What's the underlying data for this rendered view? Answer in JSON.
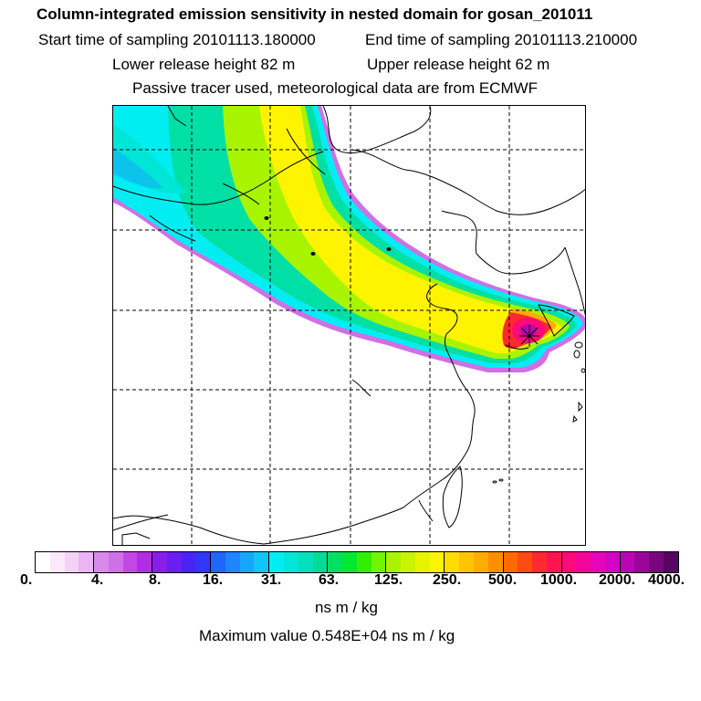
{
  "header": {
    "title": "Column-integrated emission sensitivity in nested domain for gosan_201011",
    "start_label": "Start time of sampling 20101113.180000",
    "end_label": "End time of sampling 20101113.210000",
    "lower_label": "Lower release height   82 m",
    "upper_label": "Upper release height   62 m",
    "tracer_label": "Passive tracer used, meteorological data are from ECMWF"
  },
  "colorbar": {
    "ticks": [
      "0.",
      "4.",
      "8.",
      "16.",
      "31.",
      "63.",
      "125.",
      "250.",
      "500.",
      "1000.",
      "2000.",
      "4000."
    ],
    "colors": [
      "#ffffff",
      "#fbe8fb",
      "#f3d2f6",
      "#e9b5f2",
      "#d98ae9",
      "#cf70e6",
      "#c248e4",
      "#b22ce4",
      "#8a1ee8",
      "#6a1ef0",
      "#4a23f6",
      "#3036fa",
      "#1f66fb",
      "#1d86fb",
      "#17a6fb",
      "#10c6f7",
      "#00eef2",
      "#00e6d6",
      "#00e0bd",
      "#00dc98",
      "#00e060",
      "#00e830",
      "#30f000",
      "#70f400",
      "#a8f400",
      "#c8f400",
      "#e6f400",
      "#fff400",
      "#ffdc00",
      "#ffc400",
      "#ffac00",
      "#ff8e00",
      "#ff6a00",
      "#ff4a10",
      "#ff2a30",
      "#ff1450",
      "#ff0a78",
      "#f4069a",
      "#e605b8",
      "#d205c6",
      "#b806b4",
      "#9a0699",
      "#78067c",
      "#560560"
    ],
    "unit": "ns m / kg",
    "max_label": "Maximum value  0.548E+04 ns m / kg"
  },
  "map": {
    "receptor_marker": "asterisk-icon"
  }
}
